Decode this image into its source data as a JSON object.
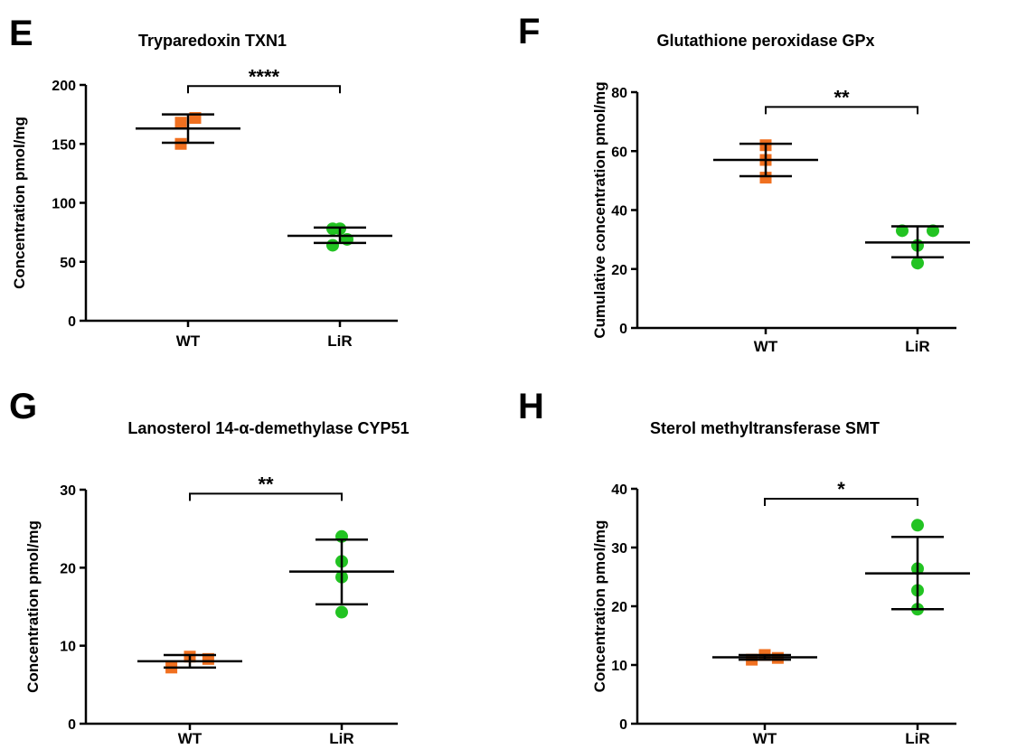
{
  "colors": {
    "WT": "#f07020",
    "LiR": "#22c322",
    "axis": "#000000"
  },
  "chart_data": [
    {
      "panel": "E",
      "type": "scatter",
      "title": "Tryparedoxin TXN1",
      "xlabel": "",
      "ylabel": "Concentration pmol/mg",
      "categories": [
        "WT",
        "LiR"
      ],
      "ylim": [
        0,
        200
      ],
      "yticks": [
        "0",
        "50",
        "100",
        "150",
        "200"
      ],
      "groups": [
        {
          "name": "WT",
          "marker": "square",
          "points": [
            [
              -0.2,
              150
            ],
            [
              -0.2,
              168
            ],
            [
              0.2,
              172
            ]
          ],
          "mean": 163,
          "sd_lower": 151,
          "sd_upper": 175
        },
        {
          "name": "LiR",
          "marker": "circle",
          "points": [
            [
              -0.2,
              64
            ],
            [
              -0.2,
              78
            ],
            [
              0,
              78
            ],
            [
              0.2,
              69
            ]
          ],
          "mean": 72,
          "sd_lower": 66,
          "sd_upper": 79
        }
      ],
      "significance": {
        "label": "****",
        "y": 199
      }
    },
    {
      "panel": "F",
      "type": "scatter",
      "title": "Glutathione peroxidase GPx",
      "xlabel": "",
      "ylabel": "Cumulative concentration pmol/mg",
      "categories": [
        "WT",
        "LiR"
      ],
      "ylim": [
        0,
        80
      ],
      "yticks": [
        "0",
        "20",
        "40",
        "60",
        "80"
      ],
      "groups": [
        {
          "name": "WT",
          "marker": "square",
          "points": [
            [
              0,
              62
            ],
            [
              0,
              57
            ],
            [
              0,
              51
            ]
          ],
          "mean": 57,
          "sd_lower": 51.5,
          "sd_upper": 62.5
        },
        {
          "name": "LiR",
          "marker": "circle",
          "points": [
            [
              -0.5,
              33
            ],
            [
              0,
              28
            ],
            [
              0,
              22
            ],
            [
              0.5,
              33
            ]
          ],
          "mean": 29,
          "sd_lower": 24,
          "sd_upper": 34.5
        }
      ],
      "significance": {
        "label": "**",
        "y": 75
      }
    },
    {
      "panel": "G",
      "type": "scatter",
      "title": "Lanosterol 14-α-demethylase CYP51",
      "xlabel": "",
      "ylabel": "Concentration pmol/mg",
      "categories": [
        "WT",
        "LiR"
      ],
      "ylim": [
        0,
        30
      ],
      "yticks": [
        "0",
        "10",
        "20",
        "30"
      ],
      "groups": [
        {
          "name": "WT",
          "marker": "square",
          "points": [
            [
              -0.3,
              7.2
            ],
            [
              0,
              8.6
            ],
            [
              0.3,
              8.3
            ]
          ],
          "mean": 8,
          "sd_lower": 7.2,
          "sd_upper": 8.8
        },
        {
          "name": "LiR",
          "marker": "circle",
          "points": [
            [
              0,
              24
            ],
            [
              0,
              20.8
            ],
            [
              0,
              18.8
            ],
            [
              0,
              14.3
            ]
          ],
          "mean": 19.5,
          "sd_lower": 15.3,
          "sd_upper": 23.6
        }
      ],
      "significance": {
        "label": "**",
        "y": 29.5
      }
    },
    {
      "panel": "H",
      "type": "scatter",
      "title": "Sterol methyltransferase SMT",
      "xlabel": "",
      "ylabel": "Concentration pmol/mg",
      "categories": [
        "WT",
        "LiR"
      ],
      "ylim": [
        0,
        40
      ],
      "yticks": [
        "0",
        "10",
        "20",
        "30",
        "40"
      ],
      "groups": [
        {
          "name": "WT",
          "marker": "square",
          "points": [
            [
              -0.4,
              10.9
            ],
            [
              0,
              11.7
            ],
            [
              0.4,
              11.2
            ]
          ],
          "mean": 11.3,
          "sd_lower": 10.9,
          "sd_upper": 11.7
        },
        {
          "name": "LiR",
          "marker": "circle",
          "points": [
            [
              0,
              33.8
            ],
            [
              0,
              26.4
            ],
            [
              0,
              22.7
            ],
            [
              0,
              19.5
            ]
          ],
          "mean": 25.6,
          "sd_lower": 19.5,
          "sd_upper": 31.8
        }
      ],
      "significance": {
        "label": "*",
        "y": 38.3
      }
    }
  ]
}
